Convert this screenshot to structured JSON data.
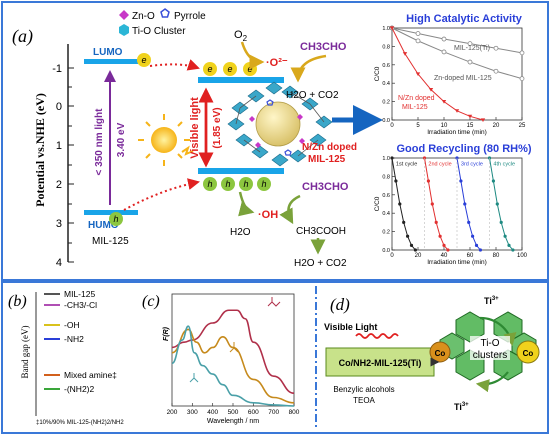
{
  "panel_labels": {
    "a": "(a)",
    "b": "(b)",
    "c": "(c)",
    "d": "(d)"
  },
  "panel_a": {
    "y_axis_label": "Potential vs.NHE (eV)",
    "y_ticks": [
      "-1",
      "0",
      "1",
      "2",
      "3",
      "4"
    ],
    "legend": {
      "zn_o": "Zn-O",
      "pyrrole": "Pyrrole",
      "ti_o": "Ti-O Cluster"
    },
    "lumo": "LUMO",
    "humo": "HUMO",
    "mil125": "MIL-125",
    "light_lt350": "< 350 nm  light",
    "gap_340": "3.40 eV",
    "visible_light": "Visible light",
    "gap_185": "(1.85 eV)",
    "electron": "e",
    "hole": "h",
    "o2": "O",
    "o2_sub": "2",
    "superoxide": "·O²⁻",
    "ch3cho_top": "CH3CHO",
    "h2o_co2_top": "H2O + CO2",
    "doped_label_1": "N/Zn doped",
    "doped_label_2": "MIL-125",
    "oh_radical": "·OH",
    "h2o": "H2O",
    "ch3cho_bottom": "CH3CHO",
    "ch3cooh": "CH3COOH",
    "h2o_co2_bottom": "H2O + CO2"
  },
  "chart_activity": {
    "title": "High Catalytic Activity",
    "ylabel": "C/C0",
    "xlabel": "Irradiation time (min)",
    "xlim": [
      0,
      25
    ],
    "ylim": [
      0.0,
      1.0
    ],
    "x_ticks": [
      "0",
      "5",
      "10",
      "15",
      "20",
      "25"
    ],
    "y_ticks": [
      "0.0",
      "0.2",
      "0.4",
      "0.6",
      "0.8",
      "1.0"
    ],
    "legend_mil": "MIL-125(Ti)",
    "legend_zn": "Zn-doped MIL-125",
    "legend_nzn_1": "N/Zn doped",
    "legend_nzn_2": "MIL-125",
    "colors": {
      "mil": "#888888",
      "zn": "#888888",
      "nzn": "#e23030"
    }
  },
  "chart_recycling": {
    "title": "Good Recycling (80 RH%)",
    "ylabel": "C/C0",
    "xlabel": "Irradiation time (min)",
    "xlim": [
      0,
      100
    ],
    "ylim": [
      0.0,
      1.0
    ],
    "x_ticks": [
      "0",
      "20",
      "40",
      "60",
      "80",
      "100"
    ],
    "y_ticks": [
      "0.0",
      "0.2",
      "0.4",
      "0.6",
      "0.8",
      "1.0"
    ],
    "cycles": [
      {
        "label": "1st cycle",
        "color": "#222222"
      },
      {
        "label": "2nd cycle",
        "color": "#e23030"
      },
      {
        "label": "3rd cycle",
        "color": "#2a3fd8"
      },
      {
        "label": "4th cycle",
        "color": "#1e8a82"
      }
    ]
  },
  "chart_data": [
    {
      "type": "line",
      "title": "High Catalytic Activity",
      "xlabel": "Irradiation time (min)",
      "ylabel": "C/C0",
      "xlim": [
        0,
        25
      ],
      "ylim": [
        0,
        1
      ],
      "series": [
        {
          "name": "MIL-125(Ti)",
          "x": [
            0,
            5,
            10,
            15,
            20,
            25
          ],
          "values": [
            1.0,
            0.94,
            0.88,
            0.83,
            0.78,
            0.73
          ]
        },
        {
          "name": "Zn-doped MIL-125",
          "x": [
            0,
            5,
            10,
            15,
            20,
            25
          ],
          "values": [
            1.0,
            0.86,
            0.74,
            0.63,
            0.53,
            0.45
          ]
        },
        {
          "name": "N/Zn doped MIL-125",
          "x": [
            0,
            2.5,
            5,
            7.5,
            10,
            12.5,
            15,
            17.5
          ],
          "values": [
            1.0,
            0.72,
            0.5,
            0.33,
            0.2,
            0.1,
            0.04,
            0.0
          ]
        }
      ]
    },
    {
      "type": "line",
      "title": "Good Recycling (80 RH%)",
      "xlabel": "Irradiation time (min)",
      "ylabel": "C/C0",
      "xlim": [
        0,
        100
      ],
      "ylim": [
        0,
        1
      ],
      "series": [
        {
          "name": "1st cycle",
          "x": [
            0,
            3,
            6,
            9,
            12,
            15,
            18
          ],
          "values": [
            1.0,
            0.75,
            0.5,
            0.3,
            0.15,
            0.05,
            0.0
          ]
        },
        {
          "name": "2nd cycle",
          "x": [
            25,
            28,
            31,
            34,
            37,
            40,
            43
          ],
          "values": [
            1.0,
            0.75,
            0.5,
            0.3,
            0.15,
            0.05,
            0.0
          ]
        },
        {
          "name": "3rd cycle",
          "x": [
            50,
            53,
            56,
            59,
            62,
            65,
            68
          ],
          "values": [
            1.0,
            0.75,
            0.5,
            0.3,
            0.15,
            0.05,
            0.0
          ]
        },
        {
          "name": "4th cycle",
          "x": [
            75,
            78,
            81,
            84,
            87,
            90,
            93
          ],
          "values": [
            1.0,
            0.75,
            0.5,
            0.3,
            0.15,
            0.05,
            0.0
          ]
        }
      ]
    },
    {
      "type": "line",
      "xlabel": "Wavelength / nm",
      "ylabel": "F(R)",
      "xlim": [
        200,
        800
      ],
      "x_ticks": [
        "200",
        "300",
        "400",
        "500",
        "600",
        "700",
        "800"
      ],
      "series": [
        {
          "color": "#b0304a",
          "x": [
            200,
            260,
            300,
            400,
            480,
            520,
            560,
            600,
            700,
            800
          ],
          "values": [
            0.55,
            0.6,
            0.62,
            0.78,
            0.9,
            0.9,
            0.82,
            0.6,
            0.28,
            0.12
          ]
        },
        {
          "color": "#c68a1c",
          "x": [
            200,
            280,
            320,
            360,
            400,
            450,
            500,
            600,
            700,
            800
          ],
          "values": [
            0.5,
            0.72,
            0.6,
            0.5,
            0.55,
            0.65,
            0.55,
            0.25,
            0.08,
            0.03
          ]
        },
        {
          "color": "#4aa0a8",
          "x": [
            200,
            250,
            280,
            310,
            350,
            400,
            450,
            500,
            600,
            700,
            800
          ],
          "values": [
            0.4,
            0.62,
            0.75,
            0.5,
            0.38,
            0.3,
            0.2,
            0.1,
            0.03,
            0.01,
            0.0
          ]
        }
      ]
    }
  ],
  "panel_b": {
    "ylabel": "Band gap (eV)",
    "legend": [
      {
        "label": "MIL-125",
        "color": "#555555"
      },
      {
        "label": "-CH3/-Cl",
        "color": "#b04fb4"
      },
      {
        "label": "-OH",
        "color": "#d9c21c"
      },
      {
        "label": "-NH2",
        "color": "#2a3fd8"
      },
      {
        "label": "Mixed amine‡",
        "color": "#d2601c"
      },
      {
        "label": "-(NH2)2",
        "color": "#3aa63a"
      }
    ],
    "footnote": "‡10%/90% MIL-125-(NH2)2/NH2"
  },
  "panel_c": {
    "ylabel": "F(R)",
    "xlabel": "Wavelength / nm",
    "x_ticks": [
      "200",
      "300",
      "400",
      "500",
      "600",
      "700",
      "800"
    ]
  },
  "panel_d": {
    "visible_light": "Visible Light",
    "cat_label": "Co/NH2-MIL-125(Ti)",
    "reagents_1": "Benzylic alcohols",
    "reagents_2": "TEOA",
    "ti_o_1": "Ti-O",
    "ti_o_2": "clusters",
    "co_left": "Co",
    "co_right": "Co",
    "ti3_top": "Ti3+",
    "ti3_bottom": "Ti3+"
  },
  "colors": {
    "frame_blue": "#3a78d8",
    "band_blue": "#19a4e8",
    "red_arrow": "#e02020",
    "purple_arrow": "#7a2a9a",
    "olive_arrow": "#7aa23a",
    "yellow_electron": "#f0d21c",
    "green_hole": "#8cc63f"
  }
}
